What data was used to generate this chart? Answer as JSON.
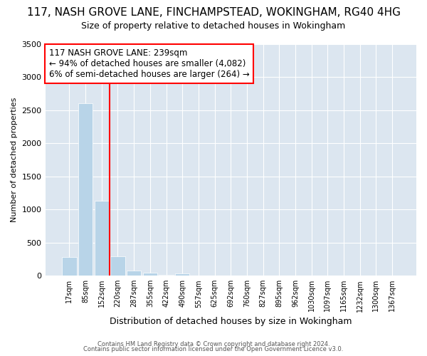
{
  "title": "117, NASH GROVE LANE, FINCHAMPSTEAD, WOKINGHAM, RG40 4HG",
  "subtitle": "Size of property relative to detached houses in Wokingham",
  "xlabel": "Distribution of detached houses by size in Wokingham",
  "ylabel": "Number of detached properties",
  "categories": [
    "17sqm",
    "85sqm",
    "152sqm",
    "220sqm",
    "287sqm",
    "355sqm",
    "422sqm",
    "490sqm",
    "557sqm",
    "625sqm",
    "692sqm",
    "760sqm",
    "827sqm",
    "895sqm",
    "962sqm",
    "1030sqm",
    "1097sqm",
    "1165sqm",
    "1232sqm",
    "1300sqm",
    "1367sqm"
  ],
  "values": [
    280,
    2600,
    1130,
    290,
    80,
    45,
    15,
    30,
    0,
    0,
    0,
    0,
    0,
    0,
    0,
    0,
    0,
    0,
    0,
    0,
    0
  ],
  "bar_color": "#b8d4e8",
  "bar_edge_color": "#b8d4e8",
  "property_line_x": 2.5,
  "annotation_line1": "117 NASH GROVE LANE: 239sqm",
  "annotation_line2": "← 94% of detached houses are smaller (4,082)",
  "annotation_line3": "6% of semi-detached houses are larger (264) →",
  "annotation_box_color": "#ff0000",
  "ylim": [
    0,
    3500
  ],
  "yticks": [
    0,
    500,
    1000,
    1500,
    2000,
    2500,
    3000,
    3500
  ],
  "footnote1": "Contains HM Land Registry data © Crown copyright and database right 2024.",
  "footnote2": "Contains public sector information licensed under the Open Government Licence v3.0.",
  "background_color": "#dce6f0",
  "title_fontsize": 11,
  "subtitle_fontsize": 9,
  "annotation_fontsize": 8.5,
  "xlabel_fontsize": 9,
  "ylabel_fontsize": 8
}
